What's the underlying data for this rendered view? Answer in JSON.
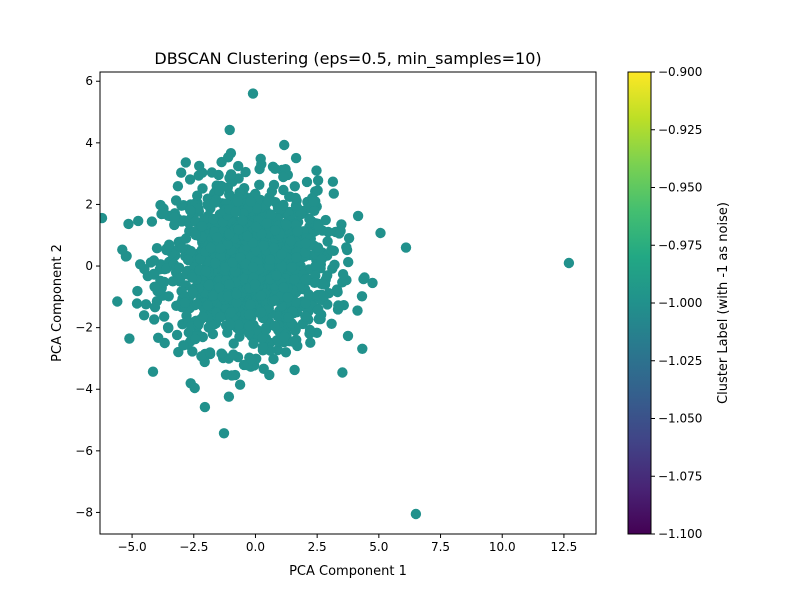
{
  "chart_data": {
    "type": "scatter",
    "title": "DBSCAN Clustering (eps=0.5, min_samples=10)",
    "xlabel": "PCA Component 1",
    "ylabel": "PCA Component 2",
    "xlim": [
      -6.3,
      13.8
    ],
    "ylim": [
      -8.7,
      6.3
    ],
    "xticks": [
      -5.0,
      -2.5,
      0.0,
      2.5,
      5.0,
      7.5,
      10.0,
      12.5
    ],
    "xtick_labels": [
      "−5.0",
      "−2.5",
      "0.0",
      "2.5",
      "5.0",
      "7.5",
      "10.0",
      "12.5"
    ],
    "yticks": [
      -8,
      -6,
      -4,
      -2,
      0,
      2,
      4,
      6
    ],
    "ytick_labels": [
      "−8",
      "−6",
      "−4",
      "−2",
      "0",
      "2",
      "4",
      "6"
    ],
    "grid": false,
    "point_color": "#21918c",
    "colormap": "viridis",
    "cluster_label": -1,
    "outliers": [
      {
        "x": 12.7,
        "y": 0.1
      },
      {
        "x": 6.5,
        "y": -8.05
      },
      {
        "x": -5.6,
        "y": -1.15
      },
      {
        "x": -0.1,
        "y": 5.6
      },
      {
        "x": 6.1,
        "y": 0.6
      }
    ],
    "cloud": {
      "center_x": -0.3,
      "center_y": 0.0,
      "spread_x": 1.7,
      "spread_y": 1.35,
      "n_points": 1400
    },
    "colorbar": {
      "label": "Cluster Label (with -1 as noise)",
      "range": [
        -1.1,
        -0.9
      ],
      "ticks": [
        -0.9,
        -0.925,
        -0.95,
        -0.975,
        -1.0,
        -1.025,
        -1.05,
        -1.075,
        -1.1
      ],
      "tick_labels": [
        "−0.900",
        "−0.925",
        "−0.950",
        "−0.975",
        "−1.000",
        "−1.025",
        "−1.050",
        "−1.075",
        "−1.100"
      ]
    }
  }
}
